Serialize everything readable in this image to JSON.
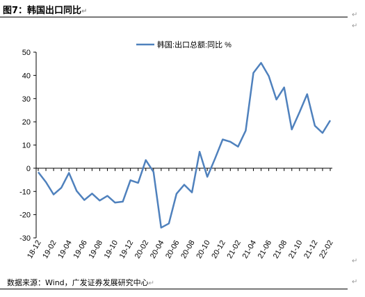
{
  "header": {
    "title": "图7：韩国出口同比"
  },
  "footer": {
    "source": "数据来源：Wind，广发证券发展研究中心"
  },
  "chart_data": {
    "type": "line",
    "title": "",
    "xlabel": "",
    "ylabel": "",
    "ylim": [
      -30,
      50
    ],
    "yticks": [
      50,
      40,
      30,
      20,
      10,
      0,
      -10,
      -20,
      -30
    ],
    "categories": [
      "18-12",
      "19-01",
      "19-02",
      "19-03",
      "19-04",
      "19-05",
      "19-06",
      "19-07",
      "19-08",
      "19-09",
      "19-10",
      "19-11",
      "19-12",
      "20-01",
      "20-02",
      "20-03",
      "20-04",
      "20-05",
      "20-06",
      "20-07",
      "20-08",
      "20-09",
      "20-10",
      "20-11",
      "20-12",
      "21-01",
      "21-02",
      "21-03",
      "21-04",
      "21-05",
      "21-06",
      "21-07",
      "21-08",
      "21-09",
      "21-10",
      "21-11",
      "21-12",
      "22-01",
      "22-02"
    ],
    "tick_labels": [
      "18-12",
      "19-02",
      "19-04",
      "19-06",
      "19-08",
      "19-10",
      "19-12",
      "20-02",
      "20-04",
      "20-06",
      "20-08",
      "20-10",
      "20-12",
      "21-02",
      "21-04",
      "21-06",
      "21-08",
      "21-10",
      "21-12",
      "22-02"
    ],
    "series": [
      {
        "name": "韩国:出口总额:同比 %",
        "color": "#4f81bd",
        "values": [
          -1.7,
          -6.0,
          -11.3,
          -8.4,
          -2.0,
          -9.8,
          -13.7,
          -10.9,
          -13.9,
          -11.9,
          -14.8,
          -14.4,
          -5.2,
          -6.3,
          3.5,
          -1.6,
          -25.6,
          -23.8,
          -11.0,
          -7.1,
          -10.4,
          7.1,
          -3.7,
          4.1,
          12.4,
          11.4,
          9.3,
          16.2,
          41.1,
          45.4,
          39.7,
          29.6,
          34.8,
          16.7,
          24.1,
          31.9,
          18.3,
          15.2,
          20.6
        ]
      }
    ],
    "legend": "top-center",
    "grid": false
  },
  "decor": {
    "return_mark": "↵"
  }
}
